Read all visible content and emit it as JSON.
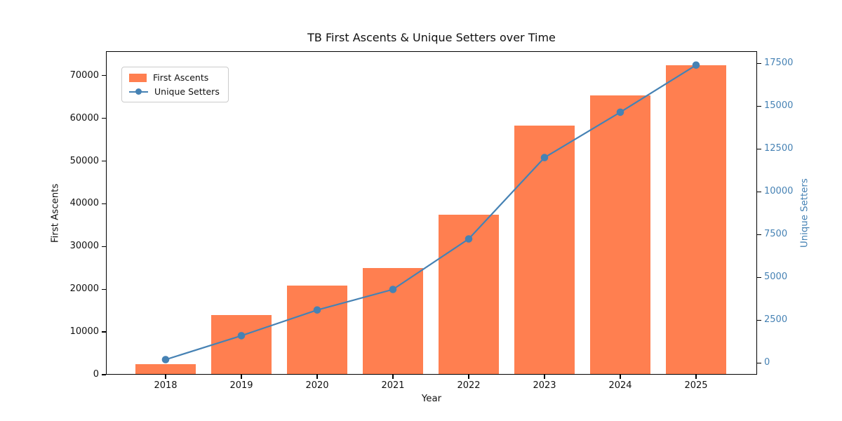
{
  "title": "TB First Ascents & Unique Setters over Time",
  "chart_data": {
    "type": "bar+line",
    "title": "TB First Ascents & Unique Setters over Time",
    "xlabel": "Year",
    "ylabel_left": "First Ascents",
    "ylabel_right": "Unique Setters",
    "categories": [
      "2018",
      "2019",
      "2020",
      "2021",
      "2022",
      "2023",
      "2024",
      "2025"
    ],
    "series": [
      {
        "name": "First Ascents",
        "type": "bar",
        "axis": "left",
        "color": "#FF7F50",
        "values": [
          2500,
          14000,
          20900,
          25000,
          37500,
          58300,
          65300,
          72500
        ]
      },
      {
        "name": "Unique Setters",
        "type": "line",
        "axis": "right",
        "color": "#4682B4",
        "marker": "circle",
        "values": [
          200,
          1600,
          3100,
          4300,
          7250,
          12000,
          14650,
          17400
        ]
      }
    ],
    "left_axis": {
      "ticks": [
        0,
        10000,
        20000,
        30000,
        40000,
        50000,
        60000,
        70000
      ],
      "lim": [
        0,
        75700
      ],
      "label_color": "#111111"
    },
    "right_axis": {
      "ticks": [
        0,
        2500,
        5000,
        7500,
        10000,
        12500,
        15000,
        17500
      ],
      "lim": [
        -680,
        18210
      ],
      "label_color": "#4682B4"
    },
    "grid": false,
    "legend_position": "upper left",
    "background": "#ffffff"
  }
}
